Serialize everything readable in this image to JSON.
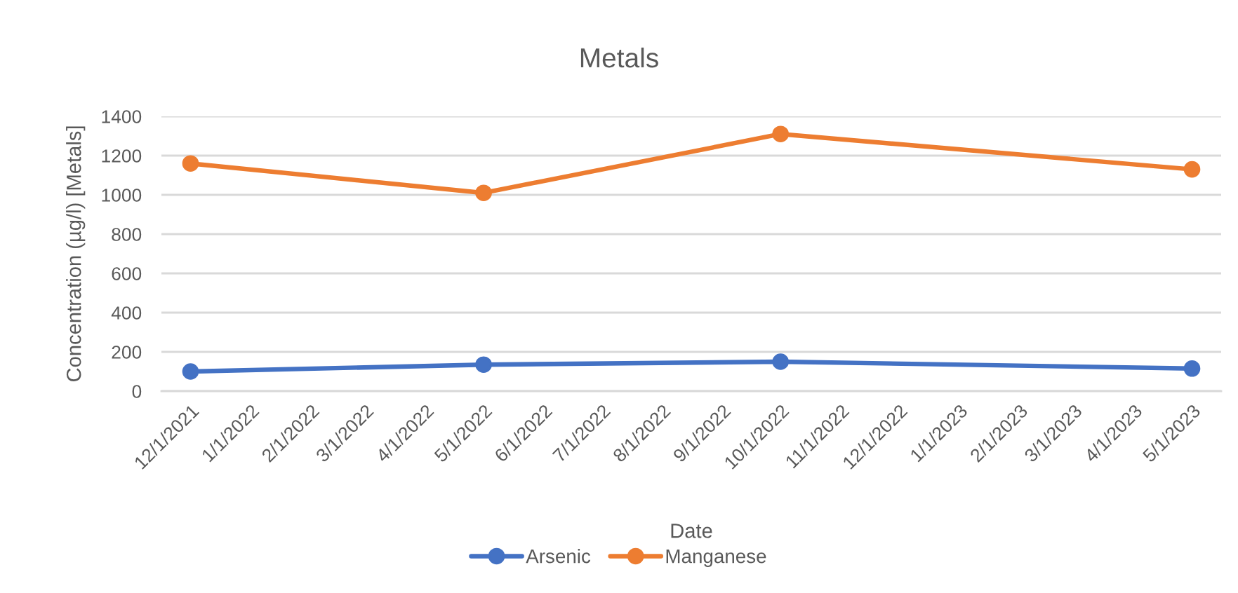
{
  "chart_data": {
    "type": "line",
    "title": "Metals",
    "xlabel": "Date",
    "ylabel": "Concentration (µg/l) [Metals]",
    "x": [
      "2021-12-01",
      "2022-05-01",
      "2022-10-01",
      "2023-05-01"
    ],
    "series": [
      {
        "name": "Arsenic",
        "color": "#4472c4",
        "values": [
          100,
          135,
          150,
          115
        ]
      },
      {
        "name": "Manganese",
        "color": "#ed7d31",
        "values": [
          1160,
          1010,
          1310,
          1130
        ]
      }
    ],
    "xlim": [
      "2021-11-16",
      "2023-05-16"
    ],
    "xticks": [
      {
        "value": "2021-12-01",
        "label": "12/1/2021"
      },
      {
        "value": "2022-01-01",
        "label": "1/1/2022"
      },
      {
        "value": "2022-02-01",
        "label": "2/1/2022"
      },
      {
        "value": "2022-03-01",
        "label": "3/1/2022"
      },
      {
        "value": "2022-04-01",
        "label": "4/1/2022"
      },
      {
        "value": "2022-05-01",
        "label": "5/1/2022"
      },
      {
        "value": "2022-06-01",
        "label": "6/1/2022"
      },
      {
        "value": "2022-07-01",
        "label": "7/1/2022"
      },
      {
        "value": "2022-08-01",
        "label": "8/1/2022"
      },
      {
        "value": "2022-09-01",
        "label": "9/1/2022"
      },
      {
        "value": "2022-10-01",
        "label": "10/1/2022"
      },
      {
        "value": "2022-11-01",
        "label": "11/1/2022"
      },
      {
        "value": "2022-12-01",
        "label": "12/1/2022"
      },
      {
        "value": "2023-01-01",
        "label": "1/1/2023"
      },
      {
        "value": "2023-02-01",
        "label": "2/1/2023"
      },
      {
        "value": "2023-03-01",
        "label": "3/1/2023"
      },
      {
        "value": "2023-04-01",
        "label": "4/1/2023"
      },
      {
        "value": "2023-05-01",
        "label": "5/1/2023"
      }
    ],
    "ylim": [
      0,
      1400
    ],
    "yticks": [
      0,
      200,
      400,
      600,
      800,
      1000,
      1200,
      1400
    ],
    "grid": "y",
    "legend": "bottom",
    "marker": "circle",
    "line_style": "solid"
  }
}
